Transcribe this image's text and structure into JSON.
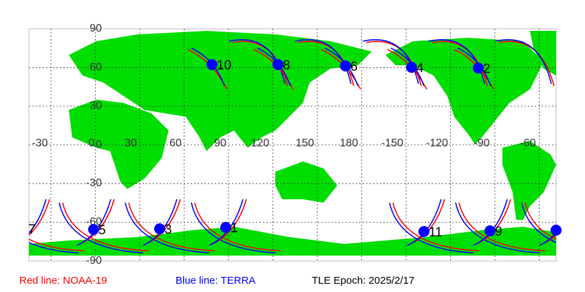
{
  "map": {
    "lon_labels": [
      "-30",
      "0",
      "30",
      "60",
      "90",
      "120",
      "150",
      "180",
      "-150",
      "-120",
      "-90",
      "-60"
    ],
    "lat_labels": [
      "90",
      "60",
      "30",
      "0",
      "-30",
      "-60",
      "-90"
    ],
    "passes": [
      "10",
      "8",
      "6",
      "4",
      "2",
      "7",
      "5",
      "3",
      "1",
      "11",
      "9"
    ]
  },
  "legend": {
    "noaa": "Red line: NOAA-19",
    "terra": "Blue line: TERRA",
    "epoch": "TLE Epoch: 2025/2/17"
  }
}
